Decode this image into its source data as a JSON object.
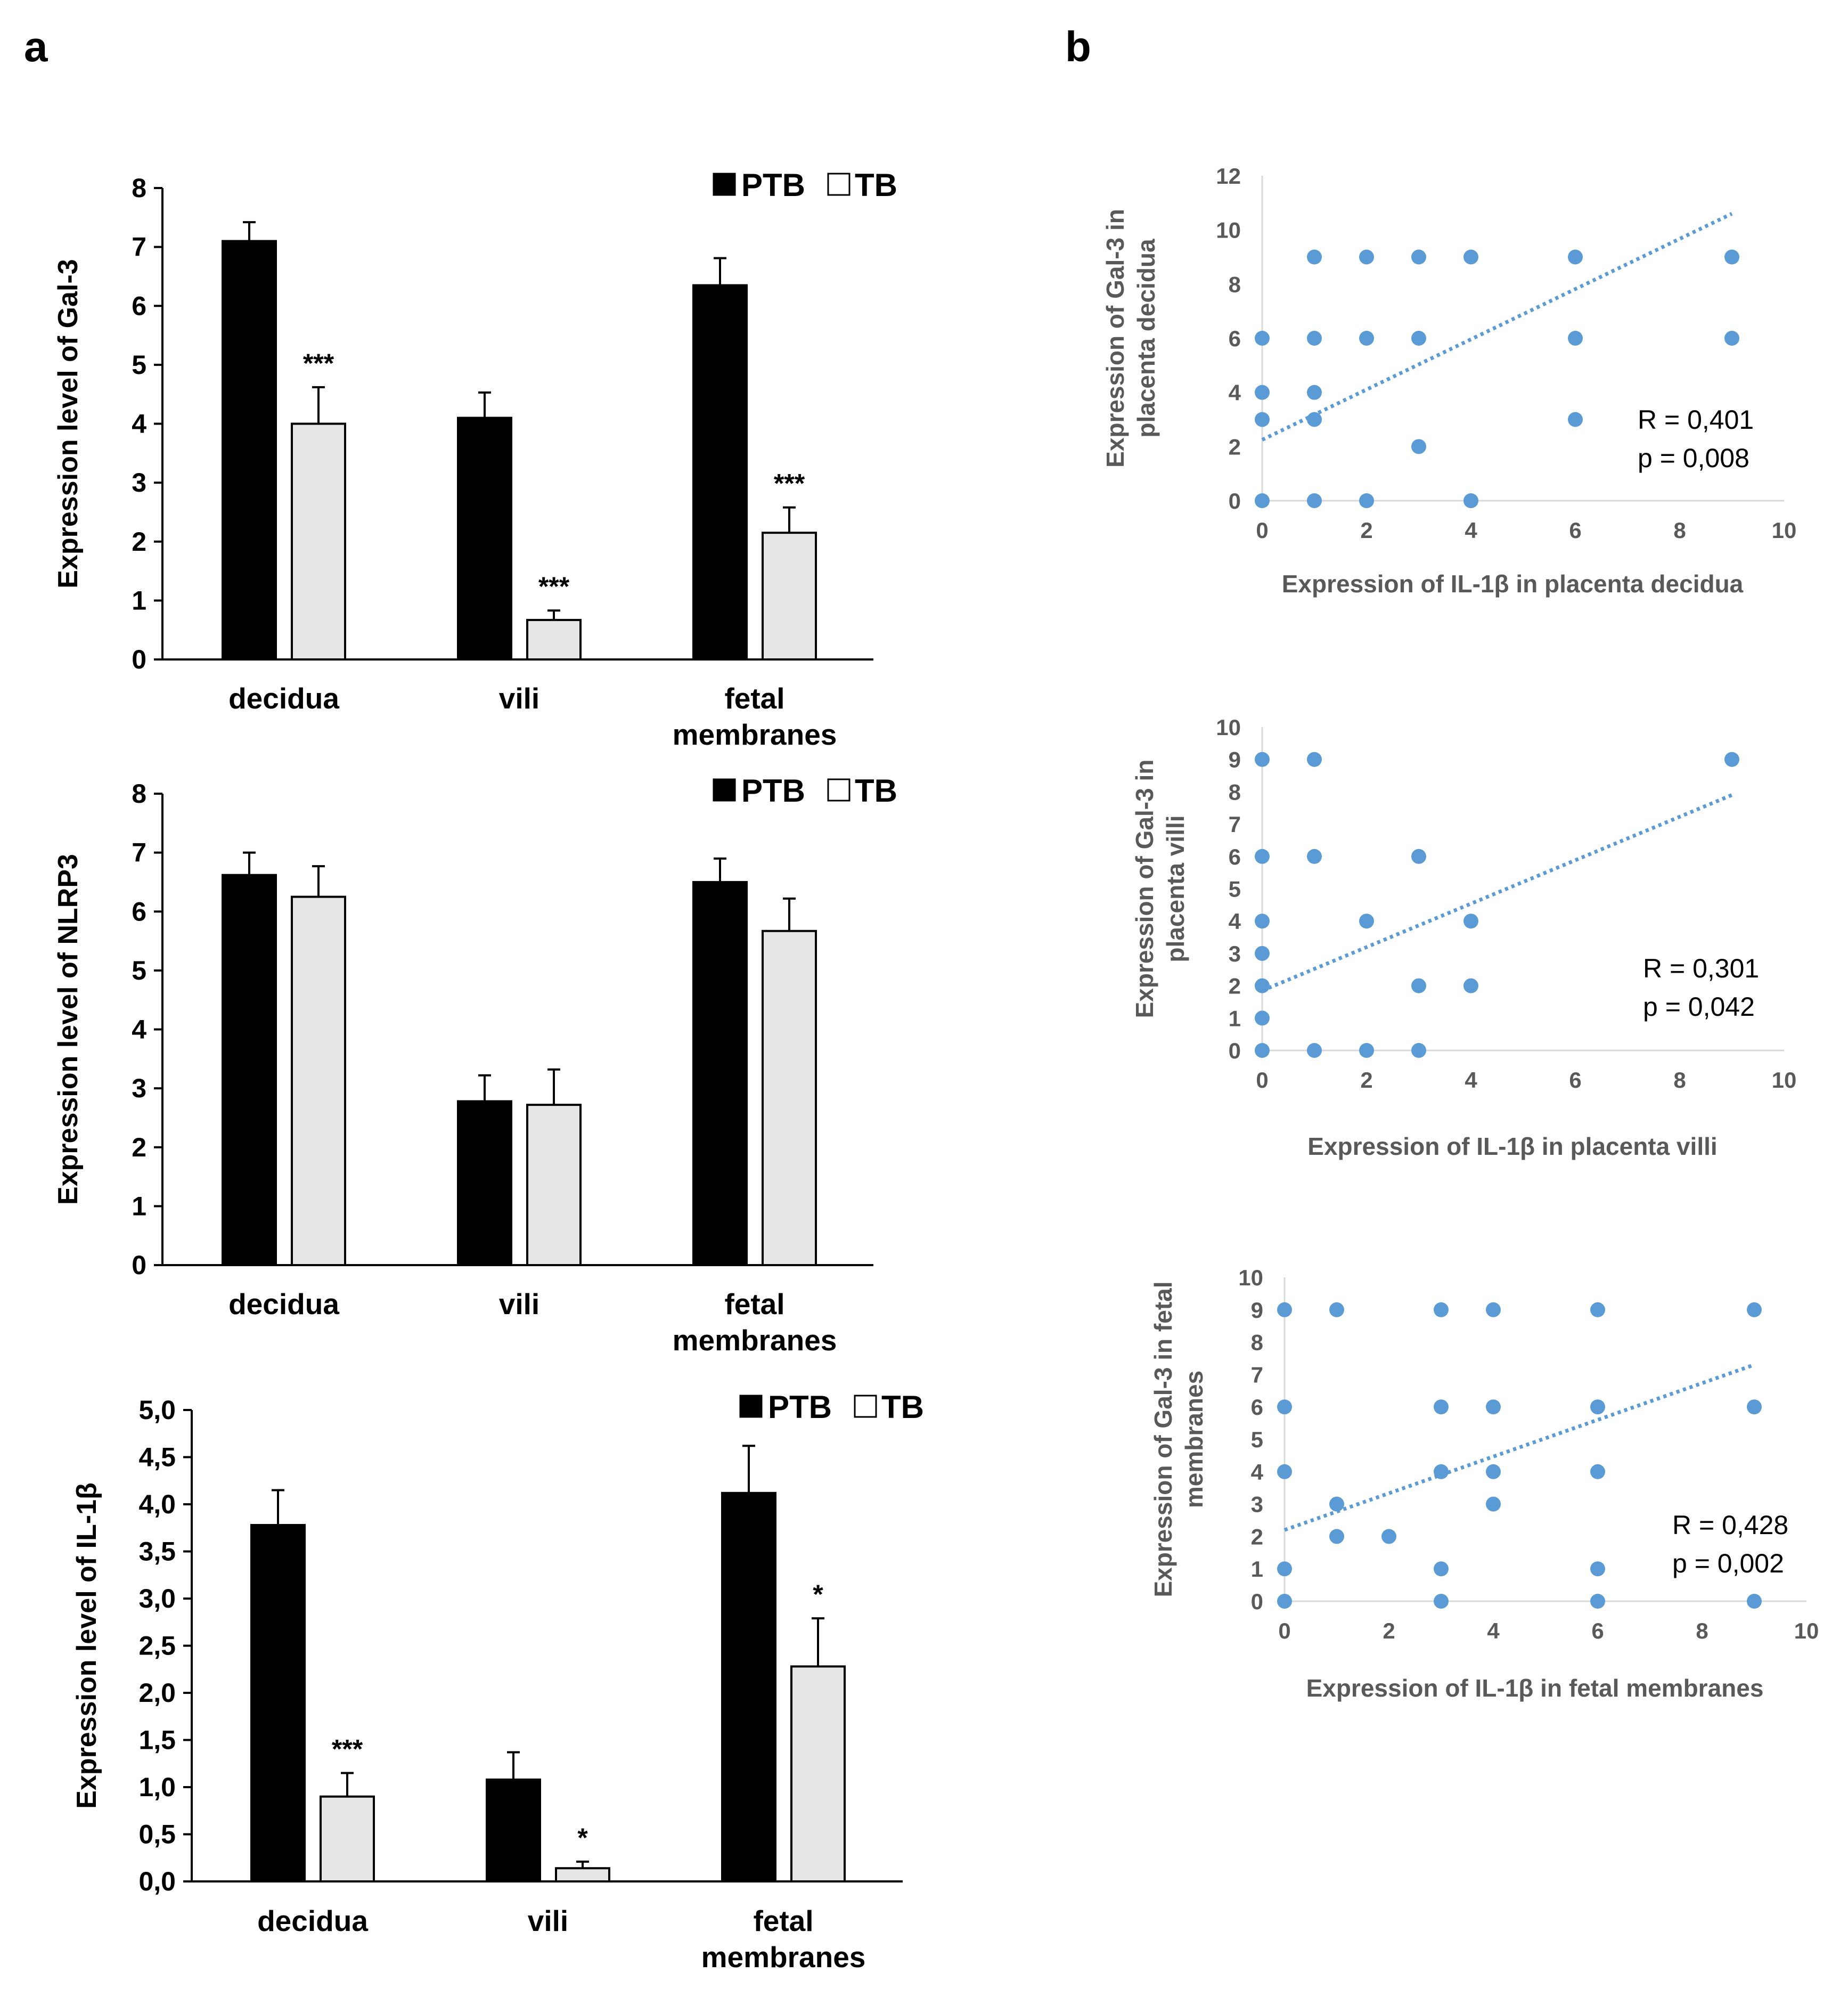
{
  "panels": {
    "a": "a",
    "b": "b"
  },
  "legend": {
    "ptb": "PTB",
    "tb": "TB"
  },
  "colors": {
    "ptb": "#000000",
    "tb": "#e6e6e6",
    "scatter": "#5b9bd5",
    "axis": "#d9d9d9"
  },
  "chart_data": [
    {
      "type": "bar",
      "id": "gal3",
      "ylabel": "Expression level of Gal-3",
      "ylim": [
        0,
        8
      ],
      "yticks": [
        0,
        1,
        2,
        3,
        4,
        5,
        6,
        7,
        8
      ],
      "yticklabels": [
        "0",
        "1",
        "2",
        "3",
        "4",
        "5",
        "6",
        "7",
        "8"
      ],
      "categories": [
        [
          "decidua"
        ],
        [
          "vili"
        ],
        [
          "fetal",
          "membranes"
        ]
      ],
      "legend": "top-right",
      "series": [
        {
          "name": "PTB",
          "values": [
            7.1,
            4.1,
            6.35
          ],
          "errors": [
            0.32,
            0.43,
            0.46
          ]
        },
        {
          "name": "TB",
          "values": [
            4.0,
            0.67,
            2.15
          ],
          "errors": [
            0.62,
            0.16,
            0.43
          ]
        }
      ],
      "annotations": [
        "***",
        "***",
        "***"
      ]
    },
    {
      "type": "bar",
      "id": "nlrp3",
      "ylabel": "Expression level of NLRP3",
      "ylim": [
        0,
        8
      ],
      "yticks": [
        0,
        1,
        2,
        3,
        4,
        5,
        6,
        7,
        8
      ],
      "yticklabels": [
        "0",
        "1",
        "2",
        "3",
        "4",
        "5",
        "6",
        "7",
        "8"
      ],
      "categories": [
        [
          "decidua"
        ],
        [
          "vili"
        ],
        [
          "fetal",
          "membranes"
        ]
      ],
      "legend": "top-right",
      "series": [
        {
          "name": "PTB",
          "values": [
            6.62,
            2.78,
            6.5
          ],
          "errors": [
            0.38,
            0.44,
            0.4
          ]
        },
        {
          "name": "TB",
          "values": [
            6.25,
            2.72,
            5.67
          ],
          "errors": [
            0.52,
            0.6,
            0.55
          ]
        }
      ],
      "annotations": [
        "",
        "",
        ""
      ]
    },
    {
      "type": "bar",
      "id": "il1b",
      "ylabel": "Expression level of IL-1β",
      "ylim": [
        0,
        5
      ],
      "yticks": [
        0,
        0.5,
        1,
        1.5,
        2,
        2.5,
        3,
        3.5,
        4,
        4.5,
        5
      ],
      "yticklabels": [
        "0,0",
        "0,5",
        "1,0",
        "1,5",
        "2,0",
        "2,5",
        "3,0",
        "3,5",
        "4,0",
        "4,5",
        "5,0"
      ],
      "categories": [
        [
          "decidua"
        ],
        [
          "vili"
        ],
        [
          "fetal",
          "membranes"
        ]
      ],
      "legend": "top-right",
      "series": [
        {
          "name": "PTB",
          "values": [
            3.78,
            1.08,
            4.12
          ],
          "errors": [
            0.37,
            0.29,
            0.5
          ]
        },
        {
          "name": "TB",
          "values": [
            0.9,
            0.14,
            2.28
          ],
          "errors": [
            0.25,
            0.07,
            0.51
          ]
        }
      ],
      "annotations": [
        "***",
        "*",
        "*"
      ]
    },
    {
      "type": "scatter",
      "id": "decidua",
      "xlabel": "Expression of IL-1β in placenta decidua",
      "ylabel": [
        "Expression of Gal-3 in",
        "placenta decidua"
      ],
      "xlim": [
        0,
        10
      ],
      "ylim": [
        0,
        12
      ],
      "xticks": [
        0,
        2,
        4,
        6,
        8,
        10
      ],
      "yticks": [
        0,
        2,
        4,
        6,
        8,
        10,
        12
      ],
      "points": [
        [
          0,
          6
        ],
        [
          0,
          4
        ],
        [
          0,
          3
        ],
        [
          0,
          0
        ],
        [
          1,
          9
        ],
        [
          1,
          6
        ],
        [
          1,
          4
        ],
        [
          1,
          3
        ],
        [
          1,
          0
        ],
        [
          2,
          9
        ],
        [
          2,
          6
        ],
        [
          2,
          0
        ],
        [
          3,
          9
        ],
        [
          3,
          6
        ],
        [
          3,
          2
        ],
        [
          4,
          9
        ],
        [
          4,
          0
        ],
        [
          6,
          9
        ],
        [
          6,
          6
        ],
        [
          6,
          3
        ],
        [
          9,
          9
        ],
        [
          9,
          6
        ]
      ],
      "trendline": {
        "x": [
          0,
          9
        ],
        "y": [
          2.25,
          10.6
        ]
      },
      "stats": {
        "r": "R = 0,401",
        "p": "p = 0,008"
      }
    },
    {
      "type": "scatter",
      "id": "villi",
      "xlabel": "Expression of IL-1β in placenta villi",
      "ylabel": [
        "Expression of Gal-3 in",
        "placenta villi"
      ],
      "xlim": [
        0,
        10
      ],
      "ylim": [
        0,
        10
      ],
      "xticks": [
        0,
        2,
        4,
        6,
        8,
        10
      ],
      "yticks": [
        0,
        1,
        2,
        3,
        4,
        5,
        6,
        7,
        8,
        9,
        10
      ],
      "points": [
        [
          0,
          9
        ],
        [
          0,
          6
        ],
        [
          0,
          4
        ],
        [
          0,
          3
        ],
        [
          0,
          2
        ],
        [
          0,
          1
        ],
        [
          0,
          0
        ],
        [
          1,
          9
        ],
        [
          1,
          6
        ],
        [
          1,
          0
        ],
        [
          2,
          4
        ],
        [
          2,
          0
        ],
        [
          3,
          6
        ],
        [
          3,
          2
        ],
        [
          3,
          0
        ],
        [
          4,
          4
        ],
        [
          4,
          2
        ],
        [
          9,
          9
        ]
      ],
      "trendline": {
        "x": [
          0,
          9
        ],
        "y": [
          1.85,
          7.9
        ]
      },
      "stats": {
        "r": "R = 0,301",
        "p": "p = 0,042"
      }
    },
    {
      "type": "scatter",
      "id": "fetal",
      "xlabel": "Expression of IL-1β in fetal membranes",
      "ylabel": [
        "Expression of Gal-3 in fetal",
        "membranes"
      ],
      "xlim": [
        0,
        10
      ],
      "ylim": [
        0,
        10
      ],
      "xticks": [
        0,
        2,
        4,
        6,
        8,
        10
      ],
      "yticks": [
        0,
        1,
        2,
        3,
        4,
        5,
        6,
        7,
        8,
        9,
        10
      ],
      "points": [
        [
          0,
          9
        ],
        [
          0,
          6
        ],
        [
          0,
          4
        ],
        [
          0,
          1
        ],
        [
          0,
          0
        ],
        [
          1,
          9
        ],
        [
          1,
          3
        ],
        [
          1,
          2
        ],
        [
          2,
          2
        ],
        [
          3,
          9
        ],
        [
          3,
          6
        ],
        [
          3,
          4
        ],
        [
          3,
          1
        ],
        [
          3,
          0
        ],
        [
          4,
          9
        ],
        [
          4,
          6
        ],
        [
          4,
          4
        ],
        [
          4,
          3
        ],
        [
          6,
          9
        ],
        [
          6,
          6
        ],
        [
          6,
          4
        ],
        [
          6,
          1
        ],
        [
          6,
          0
        ],
        [
          9,
          9
        ],
        [
          9,
          6
        ],
        [
          9,
          0
        ]
      ],
      "trendline": {
        "x": [
          0,
          9
        ],
        "y": [
          2.2,
          7.3
        ]
      },
      "stats": {
        "r": "R = 0,428",
        "p": "p = 0,002"
      }
    }
  ]
}
